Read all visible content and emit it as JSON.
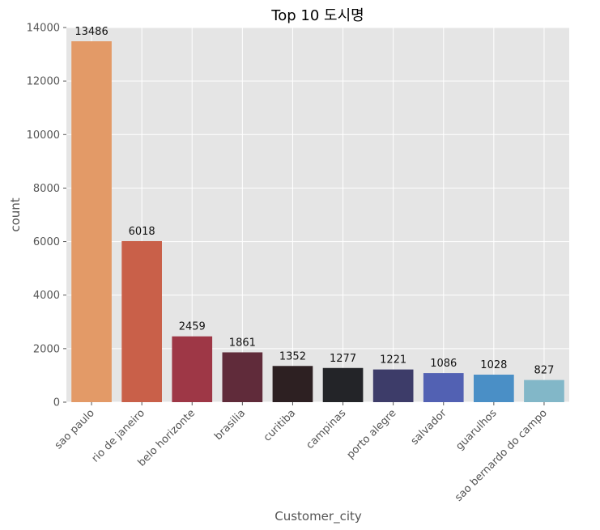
{
  "chart_data": {
    "type": "bar",
    "title": "Top 10 도시명",
    "xlabel": "Customer_city",
    "ylabel": "count",
    "ylim": [
      0,
      14000
    ],
    "yticks": [
      0,
      2000,
      4000,
      6000,
      8000,
      10000,
      12000,
      14000
    ],
    "grid": true,
    "categories": [
      "sao paulo",
      "rio de janeiro",
      "belo horizonte",
      "brasilia",
      "curitiba",
      "campinas",
      "porto alegre",
      "salvador",
      "guarulhos",
      "sao bernardo do campo"
    ],
    "values": [
      13486,
      6018,
      2459,
      1861,
      1352,
      1277,
      1221,
      1086,
      1028,
      827
    ],
    "colors": [
      "#e39a67",
      "#c96049",
      "#9e3746",
      "#602b3a",
      "#2d2022",
      "#232428",
      "#3d3c69",
      "#5261b3",
      "#4a8fc6",
      "#82b7c8"
    ],
    "background": "#e5e5e5"
  }
}
